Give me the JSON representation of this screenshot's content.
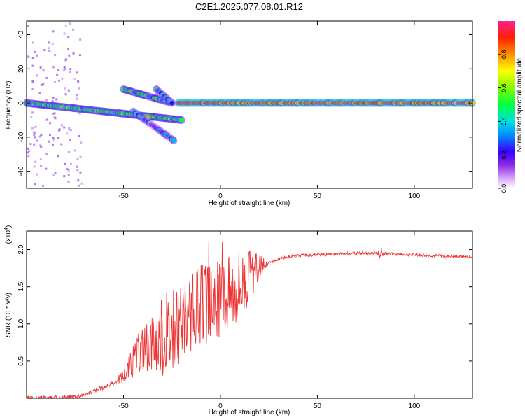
{
  "title": "C2E1.2025.077.08.01.R12",
  "chart_data": [
    {
      "type": "heatmap",
      "xlabel": "Height of straight line (km)",
      "ylabel": "Frequency (Hz)",
      "xlim": [
        -100,
        130
      ],
      "ylim": [
        -50,
        48
      ],
      "xticks": [
        -50,
        0,
        50,
        100
      ],
      "yticks": [
        -40,
        -20,
        0,
        20,
        40
      ],
      "colorbar": {
        "label": "Normalized spectral amplitude",
        "range": [
          0,
          1
        ],
        "ticks": [
          0.0,
          0.2,
          0.4,
          0.6,
          0.8
        ],
        "tick_labels": [
          "0.0",
          "0.2",
          "0.4",
          "0.6",
          "0.8"
        ]
      },
      "features": [
        {
          "from_x": -100,
          "to_x": -20,
          "from_f": 0,
          "to_f": -10,
          "amplitude": 0.5
        },
        {
          "from_x": -50,
          "to_x": -25,
          "from_f": 8,
          "to_f": 0,
          "amplitude": 0.45
        },
        {
          "from_x": -33,
          "to_x": -25,
          "from_f": 8,
          "to_f": 0,
          "amplitude": 0.4
        },
        {
          "from_x": -45,
          "to_x": -24,
          "from_f": -5,
          "to_f": -22,
          "amplitude": 0.3
        },
        {
          "from_x": -22,
          "to_x": 130,
          "from_f": 0,
          "to_f": 0,
          "amplitude": 0.9
        }
      ]
    },
    {
      "type": "line",
      "xlabel": "Height of straight line (km)",
      "ylabel": "SNR (10 * v/v)",
      "y_multiplier": "(x10",
      "y_multiplier_exp": "4",
      "xlim": [
        -100,
        130
      ],
      "ylim": [
        0,
        2.25
      ],
      "xticks": [
        -50,
        0,
        50,
        100
      ],
      "yticks": [
        0.5,
        1.0,
        1.5,
        2.0
      ],
      "ytick_labels": [
        "0.5",
        "1.0",
        "1.5",
        "2.0"
      ],
      "color": "#ee3333",
      "envelope": {
        "x": [
          -100,
          -80,
          -70,
          -65,
          -60,
          -55,
          -50,
          -45,
          -40,
          -35,
          -30,
          -25,
          -20,
          -15,
          -10,
          -5,
          0,
          5,
          10,
          15,
          20,
          25,
          30,
          35,
          40,
          50,
          60,
          70,
          80,
          90,
          100,
          110,
          120,
          130
        ],
        "y": [
          0.0,
          0.01,
          0.05,
          0.1,
          0.15,
          0.2,
          0.3,
          0.5,
          0.7,
          0.8,
          0.85,
          0.9,
          1.0,
          1.15,
          1.25,
          1.3,
          1.35,
          1.45,
          1.55,
          1.65,
          1.75,
          1.82,
          1.87,
          1.9,
          1.92,
          1.93,
          1.94,
          1.95,
          1.95,
          1.94,
          1.93,
          1.92,
          1.91,
          1.9
        ]
      }
    }
  ]
}
